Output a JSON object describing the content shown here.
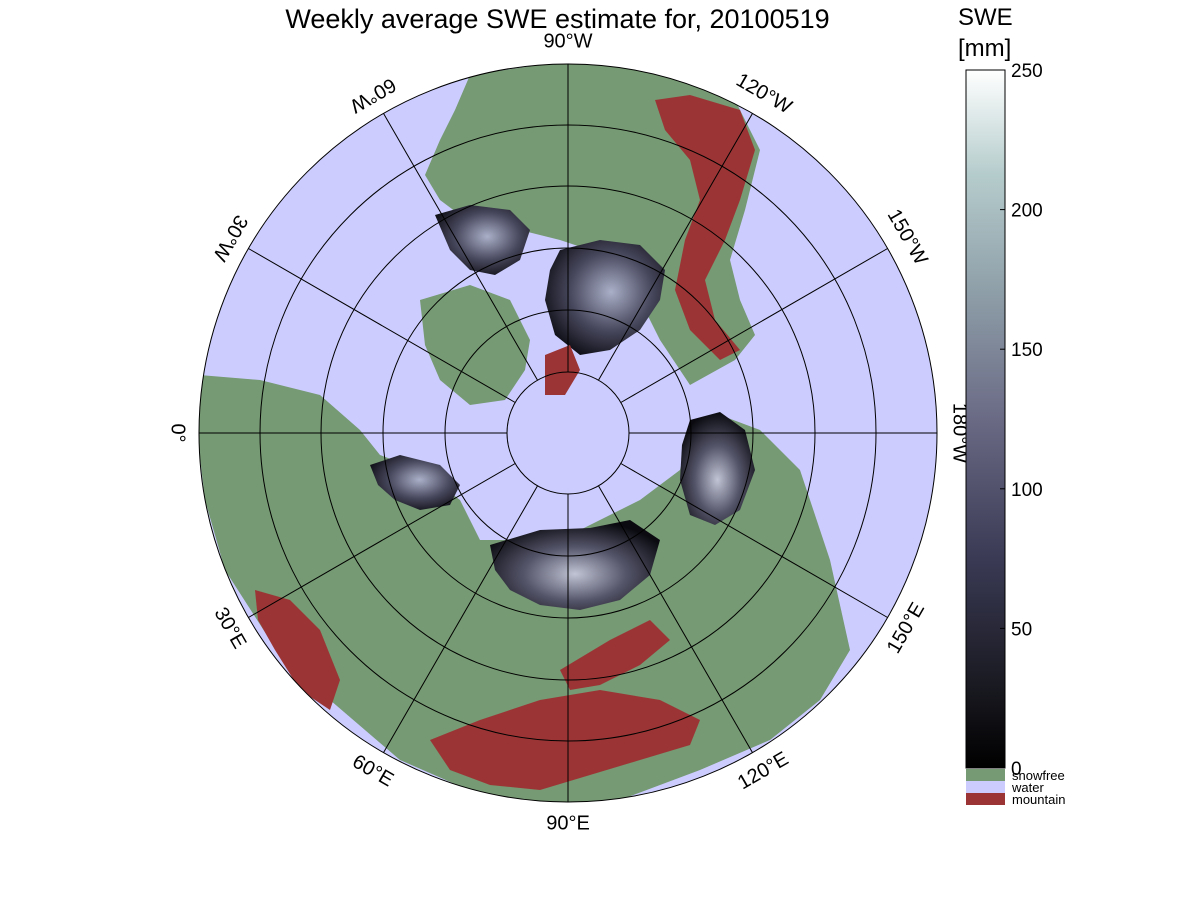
{
  "title": "Weekly average SWE estimate for, 20100519",
  "colorbar": {
    "title_line1": "SWE",
    "title_line2": "[mm]",
    "ticks": [
      "0",
      "50",
      "100",
      "150",
      "200",
      "250"
    ],
    "range": [
      0,
      250
    ],
    "categories": [
      {
        "label": "snowfree",
        "color": "#769a73"
      },
      {
        "label": "water",
        "color": "#ccccff"
      },
      {
        "label": "mountain",
        "color": "#9b3535"
      }
    ]
  },
  "map": {
    "projection": "north polar stereographic",
    "colors": {
      "ocean": "#ccccff",
      "land": "#769a73",
      "mountain": "#9b3535",
      "snow_low": "#0a0a10",
      "snow_mid": "#55556a",
      "snow_high": "#c9cfe0"
    },
    "longitude_labels": {
      "lon_90w": "90°W",
      "lon_120w": "120°W",
      "lon_150w": "150°W",
      "lon_180w": "180°W",
      "lon_150e": "150°E",
      "lon_120e": "120°E",
      "lon_90e": "90°E",
      "lon_60e": "60°E",
      "lon_30e": "30°E",
      "lon_0": "0°",
      "lon_30w": "30°W",
      "lon_60w": "60°W"
    }
  }
}
